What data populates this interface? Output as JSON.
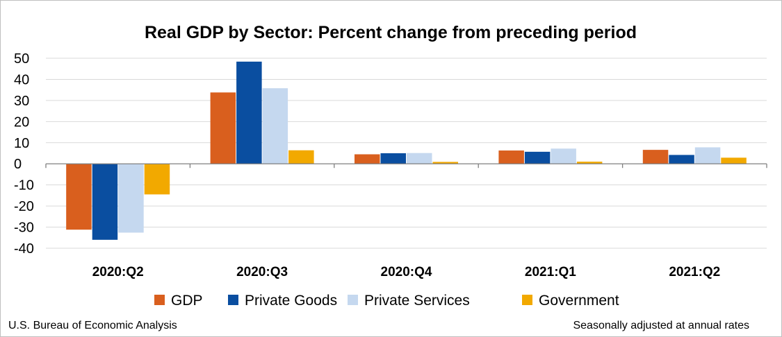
{
  "chart_data": {
    "type": "bar",
    "title": "Real GDP by Sector:  Percent change from preceding period",
    "categories": [
      "2020:Q2",
      "2020:Q3",
      "2020:Q4",
      "2021:Q1",
      "2021:Q2"
    ],
    "series": [
      {
        "name": "GDP",
        "color": "#d95f1e",
        "values": [
          -31.2,
          33.8,
          4.5,
          6.3,
          6.6
        ]
      },
      {
        "name": "Private Goods",
        "color": "#0a4ea0",
        "values": [
          -36.0,
          48.4,
          5.0,
          5.7,
          4.2
        ]
      },
      {
        "name": "Private Services",
        "color": "#c5d8ef",
        "values": [
          -32.6,
          35.8,
          5.1,
          7.2,
          7.8
        ]
      },
      {
        "name": "Government",
        "color": "#f2a900",
        "values": [
          -14.5,
          6.4,
          0.9,
          1.0,
          2.9
        ]
      }
    ],
    "yticks": [
      50,
      40,
      30,
      20,
      10,
      0,
      -10,
      -20,
      -30,
      -40
    ],
    "ylim": [
      -40,
      50
    ],
    "grid": true,
    "legend_position": "bottom"
  },
  "footer": {
    "source": "U.S. Bureau of Economic Analysis",
    "note": "Seasonally adjusted at annual rates"
  }
}
